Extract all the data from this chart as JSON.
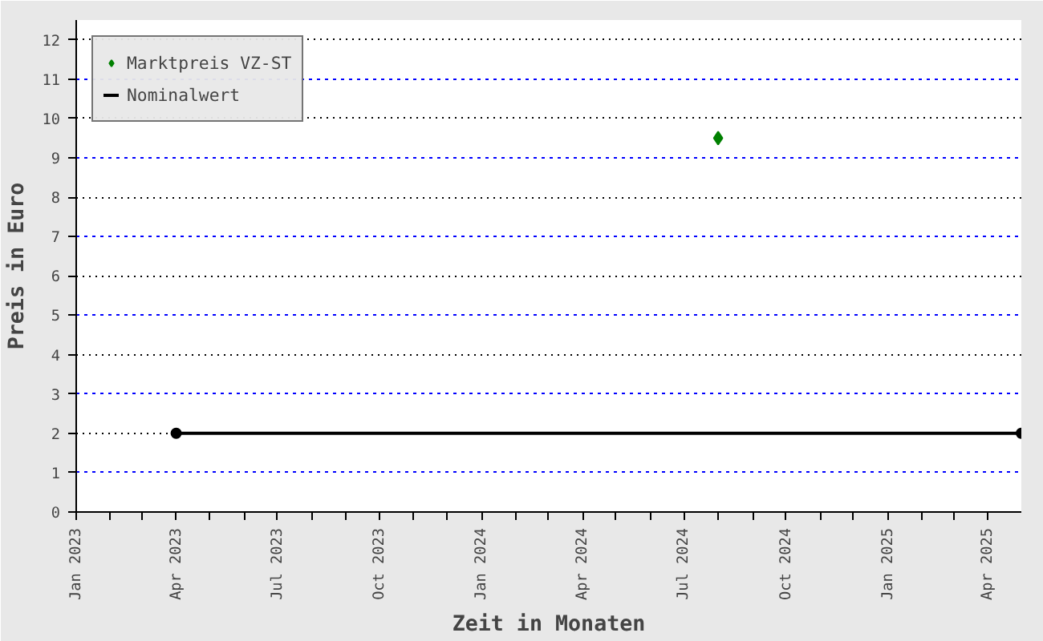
{
  "chart_data": {
    "type": "line",
    "xlabel": "Zeit in Monaten",
    "ylabel": "Preis in Euro",
    "xlim": [
      "2023-01",
      "2025-05"
    ],
    "xticks": [
      {
        "value": "2023-01",
        "label": "Jan 2023"
      },
      {
        "value": "2023-02",
        "label": null
      },
      {
        "value": "2023-03",
        "label": null
      },
      {
        "value": "2023-04",
        "label": "Apr 2023"
      },
      {
        "value": "2023-05",
        "label": null
      },
      {
        "value": "2023-06",
        "label": null
      },
      {
        "value": "2023-07",
        "label": "Jul 2023"
      },
      {
        "value": "2023-08",
        "label": null
      },
      {
        "value": "2023-09",
        "label": null
      },
      {
        "value": "2023-10",
        "label": "Oct 2023"
      },
      {
        "value": "2023-11",
        "label": null
      },
      {
        "value": "2023-12",
        "label": null
      },
      {
        "value": "2024-01",
        "label": "Jan 2024"
      },
      {
        "value": "2024-02",
        "label": null
      },
      {
        "value": "2024-03",
        "label": null
      },
      {
        "value": "2024-04",
        "label": "Apr 2024"
      },
      {
        "value": "2024-05",
        "label": null
      },
      {
        "value": "2024-06",
        "label": null
      },
      {
        "value": "2024-07",
        "label": "Jul 2024"
      },
      {
        "value": "2024-08",
        "label": null
      },
      {
        "value": "2024-09",
        "label": null
      },
      {
        "value": "2024-10",
        "label": "Oct 2024"
      },
      {
        "value": "2024-11",
        "label": null
      },
      {
        "value": "2024-12",
        "label": null
      },
      {
        "value": "2025-01",
        "label": "Jan 2025"
      },
      {
        "value": "2025-02",
        "label": null
      },
      {
        "value": "2025-03",
        "label": null
      },
      {
        "value": "2025-04",
        "label": "Apr 2025"
      }
    ],
    "ylim": [
      0,
      12.5
    ],
    "yticks": [
      0,
      1,
      2,
      3,
      4,
      5,
      6,
      7,
      8,
      9,
      10,
      11,
      12
    ],
    "grid": "y",
    "legend": "top left",
    "series": [
      {
        "name": "Marktpreis VZ-ST",
        "color": "#008000",
        "type": "scatter",
        "marker": "diamond",
        "x": [
          "2024-08"
        ],
        "values": [
          9.5
        ]
      },
      {
        "name": "Nominalwert",
        "color": "#000000",
        "marker": "circle",
        "x": [
          "2023-04",
          "2025-05"
        ],
        "values": [
          2,
          2
        ]
      }
    ]
  }
}
